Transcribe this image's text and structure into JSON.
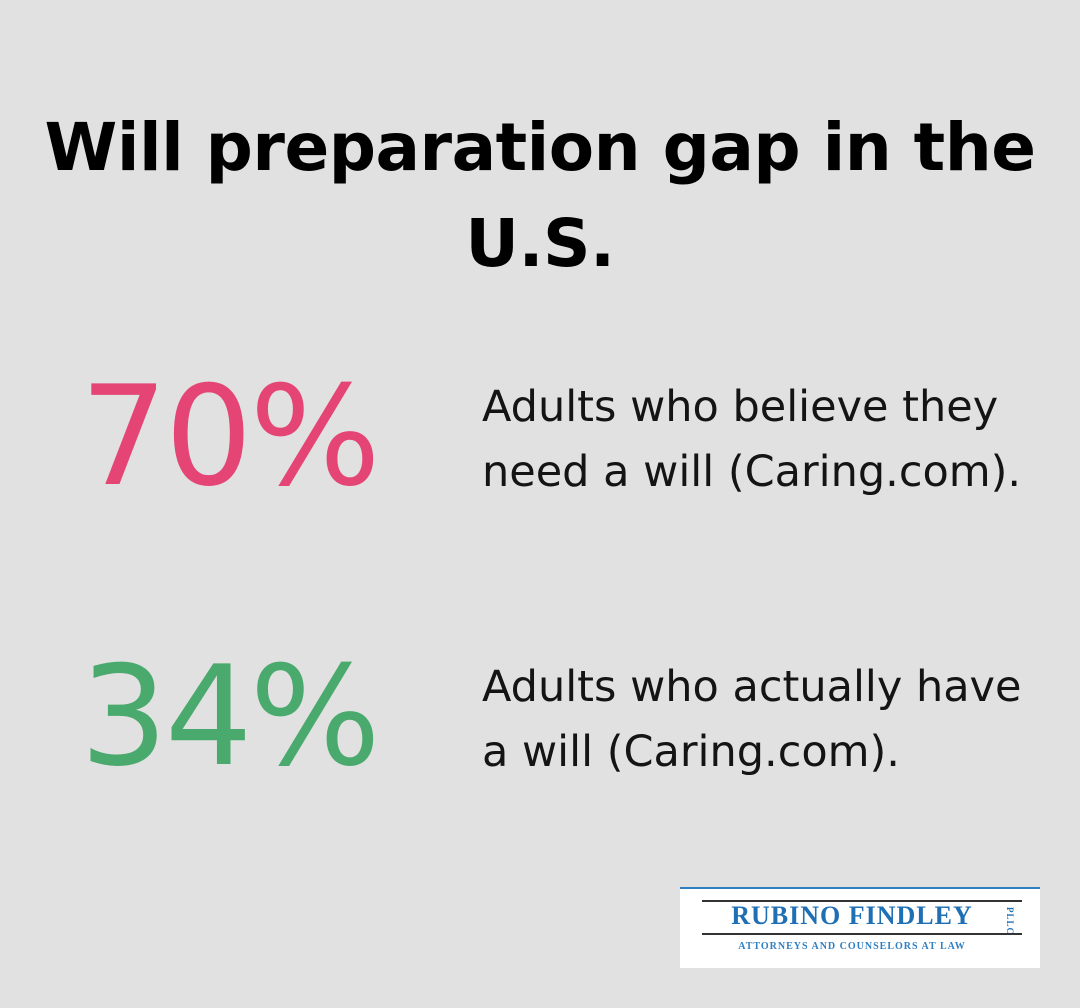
{
  "title": "Will preparation gap in the U.S.",
  "stats": [
    {
      "value": "70%",
      "color": "#e44575",
      "description": "Adults who believe they need a will (Caring.com)."
    },
    {
      "value": "34%",
      "color": "#4aa96d",
      "description": "Adults who actually have a will (Caring.com)."
    }
  ],
  "logo": {
    "name": "RUBINO FINDLEY",
    "suffix": "PLLC",
    "tagline": "ATTORNEYS AND COUNSELORS AT LAW",
    "brand_color": "#1f6fb5"
  }
}
